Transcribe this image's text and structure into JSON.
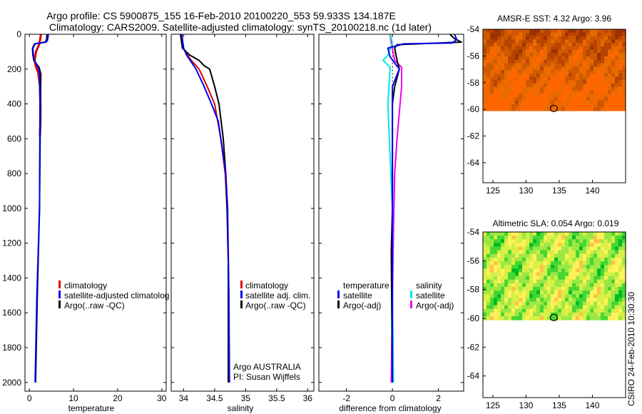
{
  "title": {
    "line1": "Argo profile: CS 5900875_155 16-Feb-2010 20100220_553 59.933S 134.187E",
    "line2": "Climatology: CARS2009. Satellite-adjusted climatology: synTS_20100218.nc (1d later)"
  },
  "side_label": "CSIRO 24-Feb-2010 10:30:30",
  "chart_data": [
    {
      "type": "line",
      "xlabel": "temperature",
      "xlim": [
        -1,
        31
      ],
      "xticks": [
        0,
        10,
        20,
        30
      ],
      "ylim": [
        2050,
        0
      ],
      "yticks": [
        0,
        200,
        400,
        600,
        800,
        1000,
        1200,
        1400,
        1600,
        1800,
        2000
      ],
      "legend": [
        {
          "label": "climatology",
          "color": "#e00000"
        },
        {
          "label": "satellite-adjusted climatolog",
          "color": "#0000ee"
        },
        {
          "label": "Argo(..raw -QC)",
          "color": "#000000"
        }
      ],
      "series": [
        {
          "name": "climatology",
          "color": "#e00000",
          "width": 3,
          "points": [
            [
              2.6,
              0
            ],
            [
              2.5,
              20
            ],
            [
              2.2,
              60
            ],
            [
              1.5,
              100
            ],
            [
              1.2,
              150
            ],
            [
              1.4,
              180
            ],
            [
              2.0,
              220
            ],
            [
              2.4,
              300
            ],
            [
              2.5,
              400
            ],
            [
              2.5,
              500
            ],
            [
              2.4,
              580
            ]
          ]
        },
        {
          "name": "Argo(..raw -QC)",
          "color": "#000000",
          "width": 2,
          "points": [
            [
              4.0,
              0
            ],
            [
              3.9,
              30
            ],
            [
              3.6,
              45
            ],
            [
              1.2,
              55
            ],
            [
              0.7,
              80
            ],
            [
              0.8,
              120
            ],
            [
              1.0,
              150
            ],
            [
              2.2,
              190
            ],
            [
              2.6,
              230
            ],
            [
              2.5,
              400
            ],
            [
              2.3,
              1000
            ],
            [
              1.8,
              1500
            ],
            [
              1.4,
              2000
            ]
          ]
        },
        {
          "name": "satellite-adjusted climatology",
          "color": "#0000ee",
          "width": 2,
          "points": [
            [
              4.3,
              0
            ],
            [
              4.1,
              35
            ],
            [
              3.8,
              45
            ],
            [
              1.3,
              55
            ],
            [
              0.8,
              80
            ],
            [
              0.9,
              120
            ],
            [
              1.1,
              150
            ],
            [
              2.0,
              190
            ],
            [
              2.3,
              220
            ],
            [
              2.4,
              400
            ],
            [
              2.3,
              1000
            ],
            [
              1.7,
              1500
            ],
            [
              1.3,
              2000
            ]
          ]
        }
      ]
    },
    {
      "type": "line",
      "xlabel": "salinity",
      "xlim": [
        33.8,
        36.1
      ],
      "xticks": [
        34,
        34.5,
        35,
        35.5,
        36
      ],
      "ylim": [
        2050,
        0
      ],
      "legend": [
        {
          "label": "climatology",
          "color": "#e00000"
        },
        {
          "label": "satellite adj. clim.",
          "color": "#0000ee"
        },
        {
          "label": "Argo(..raw -QC)",
          "color": "#000000"
        }
      ],
      "annotations": [
        "Argo AUSTRALIA",
        "PI: Susan Wijffels"
      ],
      "series": [
        {
          "name": "climatology",
          "color": "#e00000",
          "width": 2,
          "points": [
            [
              33.95,
              0
            ],
            [
              34.0,
              80
            ],
            [
              34.1,
              140
            ],
            [
              34.25,
              200
            ],
            [
              34.38,
              300
            ],
            [
              34.5,
              400
            ],
            [
              34.6,
              600
            ],
            [
              34.67,
              800
            ],
            [
              34.7,
              1000
            ],
            [
              34.72,
              1300
            ],
            [
              34.73,
              1600
            ],
            [
              34.72,
              2000
            ]
          ]
        },
        {
          "name": "Argo(..raw -QC)",
          "color": "#000000",
          "width": 2,
          "points": [
            [
              33.95,
              0
            ],
            [
              33.98,
              80
            ],
            [
              34.1,
              120
            ],
            [
              34.25,
              150
            ],
            [
              34.33,
              180
            ],
            [
              34.42,
              200
            ],
            [
              34.5,
              300
            ],
            [
              34.57,
              400
            ],
            [
              34.64,
              600
            ],
            [
              34.68,
              800
            ],
            [
              34.7,
              1000
            ],
            [
              34.72,
              1300
            ],
            [
              34.72,
              1700
            ],
            [
              34.72,
              2000
            ]
          ]
        },
        {
          "name": "satellite adj. clim.",
          "color": "#0000ee",
          "width": 2,
          "points": [
            [
              33.97,
              0
            ],
            [
              34.0,
              80
            ],
            [
              34.05,
              120
            ],
            [
              34.2,
              200
            ],
            [
              34.33,
              300
            ],
            [
              34.45,
              400
            ],
            [
              34.56,
              500
            ],
            [
              34.64,
              700
            ],
            [
              34.68,
              800
            ],
            [
              34.71,
              1000
            ],
            [
              34.73,
              1500
            ],
            [
              34.74,
              2000
            ]
          ]
        }
      ]
    },
    {
      "type": "line",
      "xlabel": "difference from climatology",
      "xlim": [
        -3.2,
        3.1
      ],
      "xticks": [
        -2,
        0,
        2
      ],
      "ylim": [
        2050,
        0
      ],
      "legend_groups": [
        {
          "title": "temperature",
          "items": [
            {
              "label": "satellite",
              "color": "#0000ee"
            },
            {
              "label": "Argo(-adj)",
              "color": "#000000"
            }
          ]
        },
        {
          "title": "salinity",
          "items": [
            {
              "label": "satellite",
              "color": "#00e5e5"
            },
            {
              "label": "Argo(-adj)",
              "color": "#ee00ee"
            }
          ]
        }
      ],
      "series": [
        {
          "name": "Argo(-adj) salinity",
          "color": "#ee00ee",
          "width": 2,
          "points": [
            [
              -0.1,
              0
            ],
            [
              -0.05,
              50
            ],
            [
              0.1,
              150
            ],
            [
              0.4,
              190
            ],
            [
              0.4,
              300
            ],
            [
              0.3,
              450
            ],
            [
              0.2,
              600
            ],
            [
              0.1,
              800
            ],
            [
              0.05,
              1100
            ],
            [
              0.0,
              1500
            ],
            [
              -0.05,
              2000
            ]
          ]
        },
        {
          "name": "satellite salinity",
          "color": "#00e5e5",
          "width": 2,
          "points": [
            [
              -0.1,
              0
            ],
            [
              0,
              50
            ],
            [
              -0.2,
              120
            ],
            [
              -0.4,
              150
            ],
            [
              -0.1,
              190
            ],
            [
              -0.15,
              300
            ],
            [
              -0.2,
              400
            ],
            [
              -0.1,
              700
            ],
            [
              0.0,
              1000
            ],
            [
              0.0,
              1500
            ],
            [
              0.05,
              2000
            ]
          ]
        },
        {
          "name": "Argo(-adj) temperature",
          "color": "#000000",
          "width": 2,
          "points": [
            [
              2.5,
              0
            ],
            [
              2.7,
              25
            ],
            [
              3.0,
              45
            ],
            [
              0.2,
              60
            ],
            [
              0.1,
              80
            ],
            [
              0.2,
              150
            ],
            [
              0.3,
              200
            ],
            [
              0.1,
              300
            ],
            [
              0.0,
              400
            ],
            [
              0.0,
              1000
            ],
            [
              -0.05,
              1250
            ],
            [
              0.0,
              2000
            ]
          ]
        },
        {
          "name": "satellite temperature",
          "color": "#0000ee",
          "width": 2,
          "points": [
            [
              2.7,
              0
            ],
            [
              2.8,
              30
            ],
            [
              2.6,
              50
            ],
            [
              0.5,
              55
            ],
            [
              -0.2,
              80
            ],
            [
              -0.1,
              130
            ],
            [
              0.3,
              200
            ],
            [
              0.0,
              300
            ],
            [
              0.0,
              500
            ],
            [
              0.0,
              1500
            ],
            [
              0.0,
              2000
            ]
          ]
        }
      ]
    },
    {
      "type": "heatmap",
      "title": "AMSR-E SST: 4.32 Argo: 3.96",
      "xlim": [
        123.5,
        145
      ],
      "xticks": [
        125,
        130,
        135,
        140
      ],
      "ylim": [
        -65.5,
        -54
      ],
      "yticks": [
        -54,
        -56,
        -58,
        -60,
        -62,
        -64
      ],
      "data_extent_lat": [
        -60.1,
        -54
      ],
      "colormap": [
        "#ff6600",
        "#e86a00",
        "#d05800",
        "#b84400",
        "#9c3200"
      ],
      "marker": {
        "lon": 134.187,
        "lat": -59.933
      }
    },
    {
      "type": "heatmap",
      "title": "Altimetric SLA: 0.054 Argo: 0.019",
      "xlim": [
        123.5,
        145
      ],
      "xticks": [
        125,
        130,
        135,
        140
      ],
      "ylim": [
        -65.5,
        -54
      ],
      "yticks": [
        -54,
        -56,
        -58,
        -60,
        -62,
        -64
      ],
      "data_extent_lat": [
        -60.1,
        -54
      ],
      "colormap": [
        "#00bb22",
        "#44d633",
        "#9be845",
        "#d8ef44",
        "#fff25a",
        "#ffc04a"
      ],
      "marker": {
        "lon": 134.187,
        "lat": -59.933
      }
    }
  ]
}
